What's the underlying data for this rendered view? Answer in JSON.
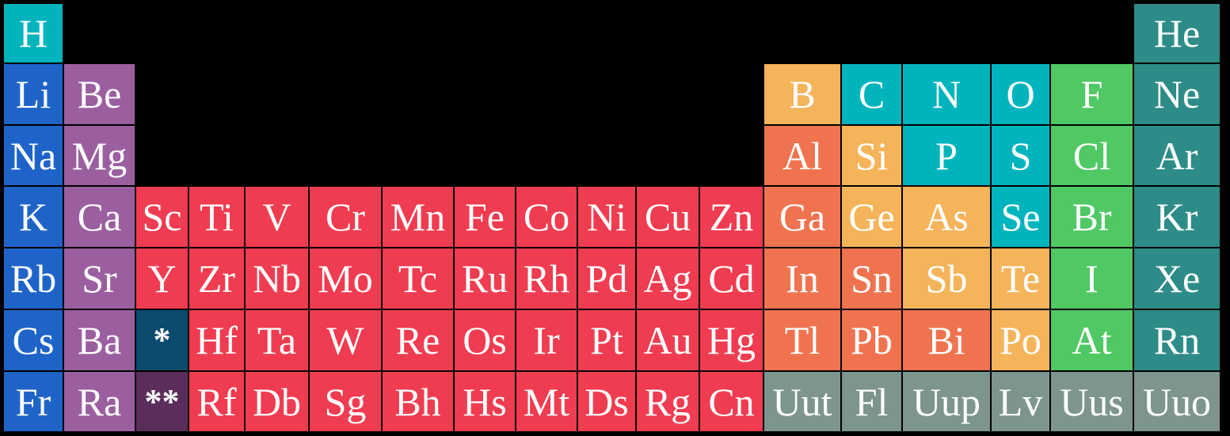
{
  "colors": {
    "alkali": "#1e64c8",
    "alkaline": "#9b5fa0",
    "transition": "#f03c50",
    "poor_metal": "#f07350",
    "metalloid": "#f5b45a",
    "nonmetal": "#00b4be",
    "halogen": "#50c864",
    "noble": "#2d8c87",
    "unknown": "#7d958e",
    "lanthanide": "#0a4b6e",
    "actinide": "#5a2d5a"
  },
  "elements": [
    {
      "symbol": "H",
      "category": "nonmetal",
      "row": 0,
      "col": 0
    },
    {
      "symbol": "He",
      "category": "noble",
      "row": 0,
      "col": 17
    },
    {
      "symbol": "Li",
      "category": "alkali",
      "row": 1,
      "col": 0
    },
    {
      "symbol": "Be",
      "category": "alkaline",
      "row": 1,
      "col": 1
    },
    {
      "symbol": "B",
      "category": "metalloid",
      "row": 1,
      "col": 12
    },
    {
      "symbol": "C",
      "category": "nonmetal",
      "row": 1,
      "col": 13
    },
    {
      "symbol": "N",
      "category": "nonmetal",
      "row": 1,
      "col": 14
    },
    {
      "symbol": "O",
      "category": "nonmetal",
      "row": 1,
      "col": 15
    },
    {
      "symbol": "F",
      "category": "halogen",
      "row": 1,
      "col": 16
    },
    {
      "symbol": "Ne",
      "category": "noble",
      "row": 1,
      "col": 17
    },
    {
      "symbol": "Na",
      "category": "alkali",
      "row": 2,
      "col": 0
    },
    {
      "symbol": "Mg",
      "category": "alkaline",
      "row": 2,
      "col": 1
    },
    {
      "symbol": "Al",
      "category": "poor_metal",
      "row": 2,
      "col": 12
    },
    {
      "symbol": "Si",
      "category": "metalloid",
      "row": 2,
      "col": 13
    },
    {
      "symbol": "P",
      "category": "nonmetal",
      "row": 2,
      "col": 14
    },
    {
      "symbol": "S",
      "category": "nonmetal",
      "row": 2,
      "col": 15
    },
    {
      "symbol": "Cl",
      "category": "halogen",
      "row": 2,
      "col": 16
    },
    {
      "symbol": "Ar",
      "category": "noble",
      "row": 2,
      "col": 17
    },
    {
      "symbol": "K",
      "category": "alkali",
      "row": 3,
      "col": 0
    },
    {
      "symbol": "Ca",
      "category": "alkaline",
      "row": 3,
      "col": 1
    },
    {
      "symbol": "Sc",
      "category": "transition",
      "row": 3,
      "col": 2
    },
    {
      "symbol": "Ti",
      "category": "transition",
      "row": 3,
      "col": 3
    },
    {
      "symbol": "V",
      "category": "transition",
      "row": 3,
      "col": 4
    },
    {
      "symbol": "Cr",
      "category": "transition",
      "row": 3,
      "col": 5
    },
    {
      "symbol": "Mn",
      "category": "transition",
      "row": 3,
      "col": 6
    },
    {
      "symbol": "Fe",
      "category": "transition",
      "row": 3,
      "col": 7
    },
    {
      "symbol": "Co",
      "category": "transition",
      "row": 3,
      "col": 8
    },
    {
      "symbol": "Ni",
      "category": "transition",
      "row": 3,
      "col": 9
    },
    {
      "symbol": "Cu",
      "category": "transition",
      "row": 3,
      "col": 10
    },
    {
      "symbol": "Zn",
      "category": "transition",
      "row": 3,
      "col": 11
    },
    {
      "symbol": "Ga",
      "category": "poor_metal",
      "row": 3,
      "col": 12
    },
    {
      "symbol": "Ge",
      "category": "metalloid",
      "row": 3,
      "col": 13
    },
    {
      "symbol": "As",
      "category": "metalloid",
      "row": 3,
      "col": 14
    },
    {
      "symbol": "Se",
      "category": "nonmetal",
      "row": 3,
      "col": 15
    },
    {
      "symbol": "Br",
      "category": "halogen",
      "row": 3,
      "col": 16
    },
    {
      "symbol": "Kr",
      "category": "noble",
      "row": 3,
      "col": 17
    },
    {
      "symbol": "Rb",
      "category": "alkali",
      "row": 4,
      "col": 0
    },
    {
      "symbol": "Sr",
      "category": "alkaline",
      "row": 4,
      "col": 1
    },
    {
      "symbol": "Y",
      "category": "transition",
      "row": 4,
      "col": 2
    },
    {
      "symbol": "Zr",
      "category": "transition",
      "row": 4,
      "col": 3
    },
    {
      "symbol": "Nb",
      "category": "transition",
      "row": 4,
      "col": 4
    },
    {
      "symbol": "Mo",
      "category": "transition",
      "row": 4,
      "col": 5
    },
    {
      "symbol": "Tc",
      "category": "transition",
      "row": 4,
      "col": 6
    },
    {
      "symbol": "Ru",
      "category": "transition",
      "row": 4,
      "col": 7
    },
    {
      "symbol": "Rh",
      "category": "transition",
      "row": 4,
      "col": 8
    },
    {
      "symbol": "Pd",
      "category": "transition",
      "row": 4,
      "col": 9
    },
    {
      "symbol": "Ag",
      "category": "transition",
      "row": 4,
      "col": 10
    },
    {
      "symbol": "Cd",
      "category": "transition",
      "row": 4,
      "col": 11
    },
    {
      "symbol": "In",
      "category": "poor_metal",
      "row": 4,
      "col": 12
    },
    {
      "symbol": "Sn",
      "category": "poor_metal",
      "row": 4,
      "col": 13
    },
    {
      "symbol": "Sb",
      "category": "metalloid",
      "row": 4,
      "col": 14
    },
    {
      "symbol": "Te",
      "category": "metalloid",
      "row": 4,
      "col": 15
    },
    {
      "symbol": "I",
      "category": "halogen",
      "row": 4,
      "col": 16
    },
    {
      "symbol": "Xe",
      "category": "noble",
      "row": 4,
      "col": 17
    },
    {
      "symbol": "Cs",
      "category": "alkali",
      "row": 5,
      "col": 0
    },
    {
      "symbol": "Ba",
      "category": "alkaline",
      "row": 5,
      "col": 1
    },
    {
      "symbol": "*",
      "category": "lanthanide",
      "row": 5,
      "col": 2
    },
    {
      "symbol": "Hf",
      "category": "transition",
      "row": 5,
      "col": 3
    },
    {
      "symbol": "Ta",
      "category": "transition",
      "row": 5,
      "col": 4
    },
    {
      "symbol": "W",
      "category": "transition",
      "row": 5,
      "col": 5
    },
    {
      "symbol": "Re",
      "category": "transition",
      "row": 5,
      "col": 6
    },
    {
      "symbol": "Os",
      "category": "transition",
      "row": 5,
      "col": 7
    },
    {
      "symbol": "Ir",
      "category": "transition",
      "row": 5,
      "col": 8
    },
    {
      "symbol": "Pt",
      "category": "transition",
      "row": 5,
      "col": 9
    },
    {
      "symbol": "Au",
      "category": "transition",
      "row": 5,
      "col": 10
    },
    {
      "symbol": "Hg",
      "category": "transition",
      "row": 5,
      "col": 11
    },
    {
      "symbol": "Tl",
      "category": "poor_metal",
      "row": 5,
      "col": 12
    },
    {
      "symbol": "Pb",
      "category": "poor_metal",
      "row": 5,
      "col": 13
    },
    {
      "symbol": "Bi",
      "category": "poor_metal",
      "row": 5,
      "col": 14
    },
    {
      "symbol": "Po",
      "category": "metalloid",
      "row": 5,
      "col": 15
    },
    {
      "symbol": "At",
      "category": "halogen",
      "row": 5,
      "col": 16
    },
    {
      "symbol": "Rn",
      "category": "noble",
      "row": 5,
      "col": 17
    },
    {
      "symbol": "Fr",
      "category": "alkali",
      "row": 6,
      "col": 0
    },
    {
      "symbol": "Ra",
      "category": "alkaline",
      "row": 6,
      "col": 1
    },
    {
      "symbol": "**",
      "category": "actinide",
      "row": 6,
      "col": 2
    },
    {
      "symbol": "Rf",
      "category": "transition",
      "row": 6,
      "col": 3
    },
    {
      "symbol": "Db",
      "category": "transition",
      "row": 6,
      "col": 4
    },
    {
      "symbol": "Sg",
      "category": "transition",
      "row": 6,
      "col": 5
    },
    {
      "symbol": "Bh",
      "category": "transition",
      "row": 6,
      "col": 6
    },
    {
      "symbol": "Hs",
      "category": "transition",
      "row": 6,
      "col": 7
    },
    {
      "symbol": "Mt",
      "category": "transition",
      "row": 6,
      "col": 8
    },
    {
      "symbol": "Ds",
      "category": "transition",
      "row": 6,
      "col": 9
    },
    {
      "symbol": "Rg",
      "category": "transition",
      "row": 6,
      "col": 10
    },
    {
      "symbol": "Cn",
      "category": "transition",
      "row": 6,
      "col": 11
    },
    {
      "symbol": "Uut",
      "category": "unknown",
      "row": 6,
      "col": 12
    },
    {
      "symbol": "Fl",
      "category": "unknown",
      "row": 6,
      "col": 13
    },
    {
      "symbol": "Uup",
      "category": "unknown",
      "row": 6,
      "col": 14
    },
    {
      "symbol": "Lv",
      "category": "unknown",
      "row": 6,
      "col": 15
    },
    {
      "symbol": "Uus",
      "category": "unknown",
      "row": 6,
      "col": 16
    },
    {
      "symbol": "Uuo",
      "category": "unknown",
      "row": 6,
      "col": 17
    }
  ]
}
